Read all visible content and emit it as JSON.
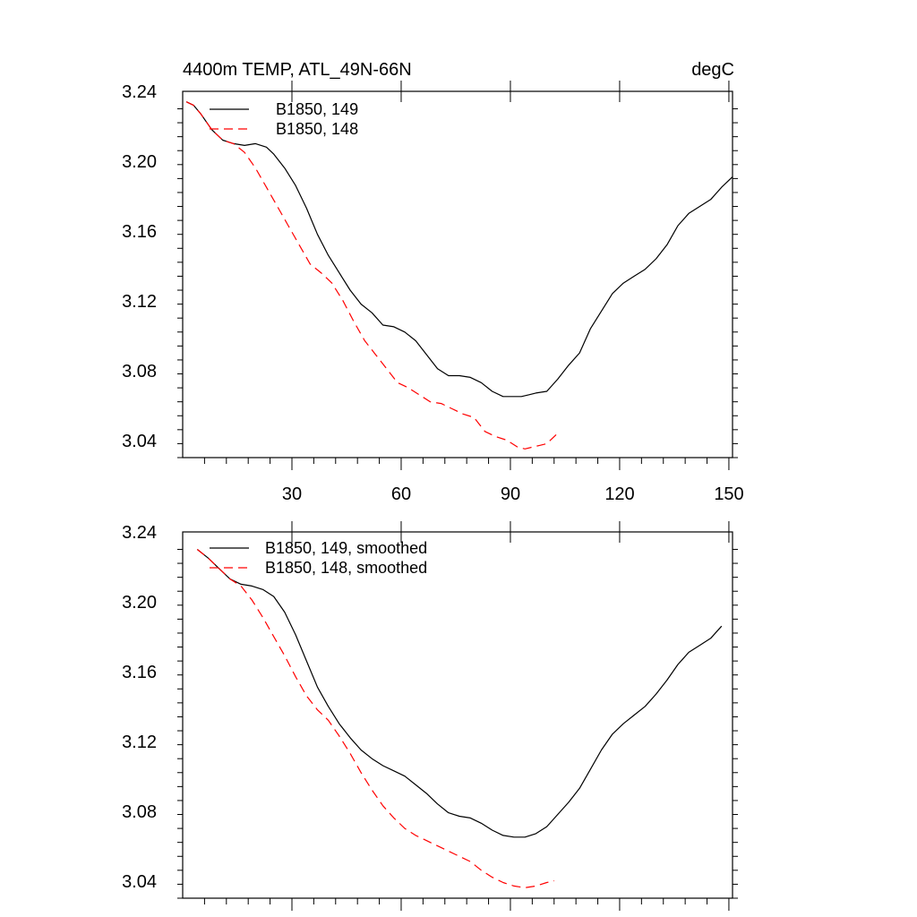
{
  "chart_data": [
    {
      "type": "line",
      "title_left": "4400m TEMP, ATL_49N-66N",
      "title_right": "degC",
      "xlim": [
        0,
        151
      ],
      "ylim": [
        3.03,
        3.24
      ],
      "x_ticks": [
        30,
        60,
        90,
        120,
        150
      ],
      "x_tick_labels": [
        "30",
        "60",
        "90",
        "120",
        "150"
      ],
      "y_ticks": [
        3.04,
        3.08,
        3.12,
        3.16,
        3.2,
        3.24
      ],
      "y_tick_labels": [
        "3.04",
        "3.08",
        "3.12",
        "3.16",
        "3.20",
        "3.24"
      ],
      "legend_position": "top-left",
      "series": [
        {
          "name": "B1850, 149",
          "color": "#000000",
          "dash": "solid",
          "x": [
            1,
            3,
            5,
            8,
            11,
            14,
            17,
            20,
            23,
            25,
            28,
            31,
            34,
            37,
            40,
            43,
            46,
            49,
            52,
            55,
            58,
            61,
            64,
            67,
            70,
            73,
            76,
            79,
            82,
            85,
            88,
            91,
            93,
            95,
            97,
            100,
            103,
            106,
            109,
            112,
            115,
            118,
            121,
            124,
            127,
            130,
            133,
            136,
            139,
            142,
            145,
            148,
            151
          ],
          "y": [
            3.234,
            3.232,
            3.227,
            3.218,
            3.212,
            3.21,
            3.209,
            3.21,
            3.208,
            3.204,
            3.196,
            3.186,
            3.173,
            3.158,
            3.146,
            3.136,
            3.126,
            3.118,
            3.113,
            3.106,
            3.105,
            3.102,
            3.097,
            3.089,
            3.081,
            3.077,
            3.077,
            3.076,
            3.073,
            3.068,
            3.065,
            3.065,
            3.065,
            3.066,
            3.067,
            3.068,
            3.075,
            3.083,
            3.09,
            3.104,
            3.114,
            3.124,
            3.13,
            3.134,
            3.138,
            3.144,
            3.152,
            3.163,
            3.17,
            3.174,
            3.178,
            3.185,
            3.191
          ]
        },
        {
          "name": "B1850, 148",
          "color": "#ff0000",
          "dash": "dashed",
          "x": [
            1,
            3,
            5,
            8,
            11,
            14,
            17,
            20,
            23,
            26,
            29,
            32,
            35,
            38,
            41,
            44,
            47,
            50,
            53,
            56,
            59,
            62,
            65,
            68,
            71,
            74,
            77,
            80,
            83,
            86,
            89,
            92,
            94,
            96,
            98,
            100,
            103
          ],
          "y": [
            3.234,
            3.232,
            3.227,
            3.218,
            3.212,
            3.21,
            3.205,
            3.196,
            3.185,
            3.174,
            3.163,
            3.152,
            3.141,
            3.136,
            3.13,
            3.12,
            3.108,
            3.097,
            3.089,
            3.081,
            3.073,
            3.07,
            3.066,
            3.062,
            3.061,
            3.058,
            3.055,
            3.053,
            3.045,
            3.042,
            3.04,
            3.036,
            3.035,
            3.036,
            3.037,
            3.038,
            3.044
          ]
        }
      ]
    },
    {
      "type": "line",
      "xlim": [
        0,
        151
      ],
      "ylim": [
        3.03,
        3.24
      ],
      "x_ticks": [
        30,
        60,
        90,
        120,
        150
      ],
      "y_ticks": [
        3.04,
        3.08,
        3.12,
        3.16,
        3.2,
        3.24
      ],
      "y_tick_labels": [
        "3.04",
        "3.08",
        "3.12",
        "3.16",
        "3.20",
        "3.24"
      ],
      "legend_position": "top-left",
      "series": [
        {
          "name": "B1850, 149, smoothed",
          "color": "#000000",
          "dash": "solid",
          "x": [
            4,
            7,
            10,
            13,
            16,
            19,
            22,
            25,
            28,
            31,
            34,
            37,
            40,
            43,
            46,
            49,
            52,
            55,
            58,
            61,
            64,
            67,
            70,
            73,
            76,
            79,
            82,
            85,
            88,
            91,
            94,
            97,
            100,
            103,
            106,
            109,
            112,
            115,
            118,
            121,
            124,
            127,
            130,
            133,
            136,
            139,
            142,
            145,
            148
          ],
          "y": [
            3.23,
            3.225,
            3.219,
            3.213,
            3.21,
            3.209,
            3.207,
            3.203,
            3.194,
            3.181,
            3.166,
            3.151,
            3.14,
            3.13,
            3.122,
            3.115,
            3.11,
            3.106,
            3.103,
            3.1,
            3.095,
            3.09,
            3.084,
            3.079,
            3.077,
            3.076,
            3.073,
            3.069,
            3.066,
            3.065,
            3.065,
            3.067,
            3.071,
            3.078,
            3.085,
            3.093,
            3.104,
            3.115,
            3.124,
            3.13,
            3.135,
            3.14,
            3.147,
            3.155,
            3.164,
            3.171,
            3.175,
            3.179,
            3.186
          ]
        },
        {
          "name": "B1850, 148, smoothed",
          "color": "#ff0000",
          "dash": "dashed",
          "x": [
            4,
            7,
            10,
            13,
            16,
            19,
            22,
            25,
            28,
            31,
            34,
            37,
            40,
            43,
            46,
            49,
            52,
            55,
            58,
            61,
            64,
            67,
            70,
            73,
            76,
            79,
            82,
            85,
            88,
            91,
            94,
            97,
            100,
            102
          ],
          "y": [
            3.23,
            3.225,
            3.219,
            3.213,
            3.209,
            3.201,
            3.191,
            3.18,
            3.169,
            3.157,
            3.146,
            3.138,
            3.132,
            3.123,
            3.113,
            3.102,
            3.092,
            3.083,
            3.076,
            3.07,
            3.066,
            3.063,
            3.06,
            3.057,
            3.054,
            3.051,
            3.046,
            3.042,
            3.039,
            3.037,
            3.036,
            3.037,
            3.039,
            3.04
          ]
        }
      ]
    }
  ]
}
